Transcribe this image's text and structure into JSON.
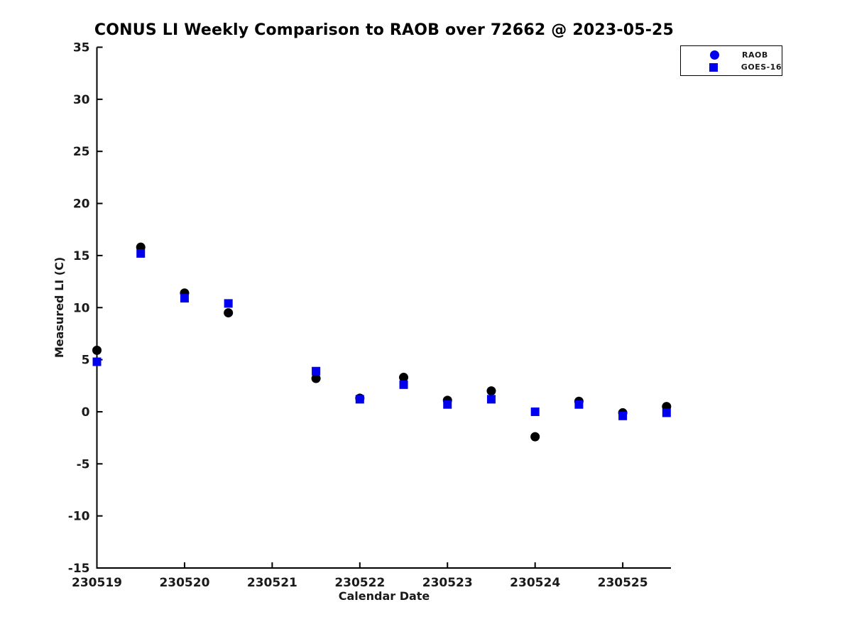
{
  "figure": {
    "background_color": "#ffffff",
    "axis_color": "#000000",
    "text_color": "#1a1a1a"
  },
  "chart_data": {
    "type": "scatter",
    "title": "CONUS LI Weekly Comparison to RAOB over 72662 @ 2023-05-25",
    "xlabel": "Calendar Date",
    "ylabel": "Measured LI (C)",
    "xlim": [
      230519,
      230525.55
    ],
    "ylim": [
      -15,
      35
    ],
    "xtick_values": [
      230519,
      230520,
      230521,
      230522,
      230523,
      230524,
      230525
    ],
    "xtick_labels": [
      "230519",
      "230520",
      "230521",
      "230522",
      "230523",
      "230524",
      "230525"
    ],
    "ytick_values": [
      -15,
      -10,
      -5,
      0,
      5,
      10,
      15,
      20,
      25,
      30,
      35
    ],
    "ytick_labels": [
      "-15",
      "-10",
      "-5",
      "0",
      "5",
      "10",
      "15",
      "20",
      "25",
      "30",
      "35"
    ],
    "grid": false,
    "x": [
      230519,
      230519.5,
      230520,
      230520.5,
      230521.5,
      230522,
      230522.5,
      230523,
      230523.5,
      230524,
      230524.5,
      230525,
      230525.5
    ],
    "series": [
      {
        "name": "RAOB",
        "marker": "circle",
        "color": "#000000",
        "values": [
          5.9,
          15.8,
          11.4,
          9.5,
          3.2,
          1.3,
          3.3,
          1.1,
          2.0,
          -2.4,
          1.0,
          -0.1,
          0.5
        ]
      },
      {
        "name": "GOES-16",
        "marker": "square",
        "color": "#0000ee",
        "values": [
          4.8,
          15.2,
          10.9,
          10.4,
          3.9,
          1.2,
          2.6,
          0.7,
          1.2,
          0.0,
          0.7,
          -0.4,
          -0.1
        ]
      }
    ],
    "legend": {
      "position": "top-right",
      "entries": [
        {
          "label": "RAOB",
          "marker": "circle",
          "color": "#0000ee"
        },
        {
          "label": "GOES-16",
          "marker": "square",
          "color": "#0000ee"
        }
      ]
    }
  }
}
